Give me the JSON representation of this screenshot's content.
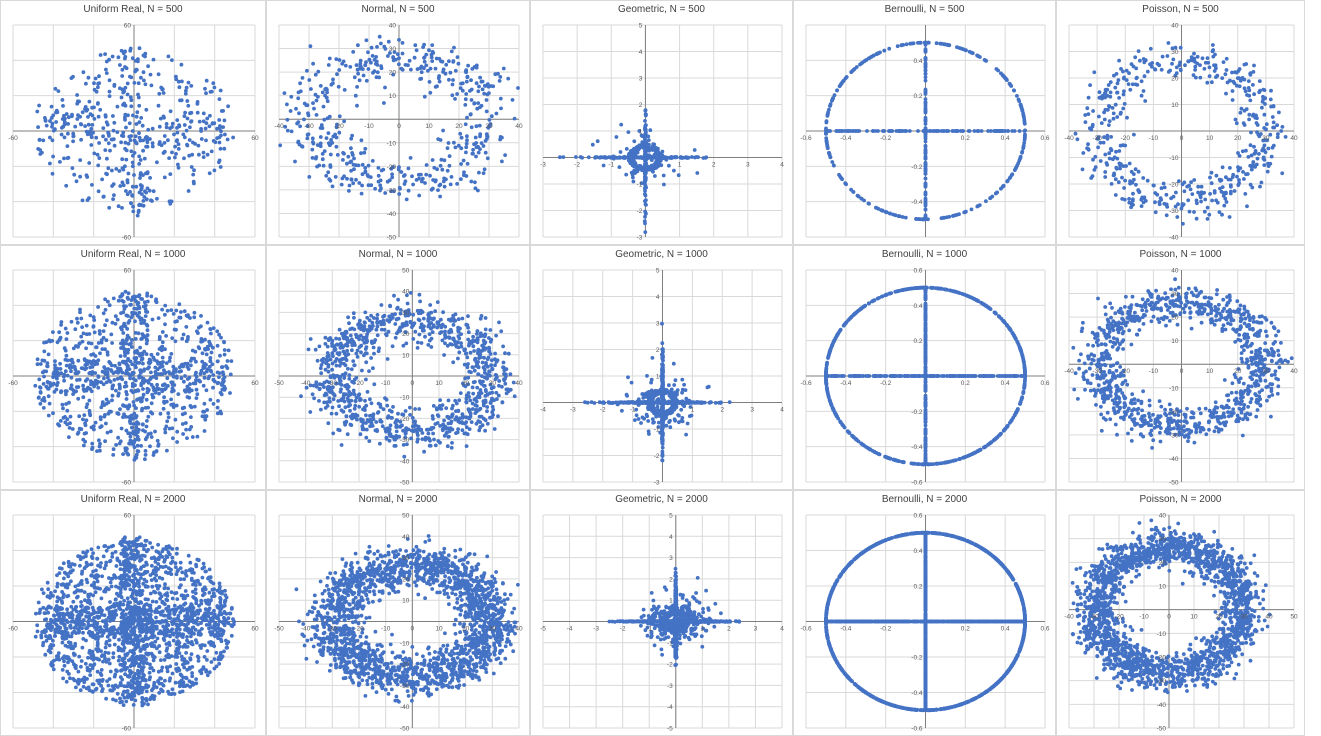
{
  "sheet": {
    "background": "#ffffff",
    "point_color": "#4472C4",
    "gridline_color": "#d9d9d9",
    "axis_color": "#404040",
    "label_color": "#595959"
  },
  "chart_data": [
    {
      "type": "scatter",
      "title": "Uniform Real, N = 500",
      "n": 500,
      "shape": "uniform-rings",
      "xlim": [
        -60,
        60
      ],
      "ylim": [
        -60,
        60
      ],
      "xticks": [
        -60,
        60
      ],
      "yticks": [
        60,
        -60
      ],
      "xgrid": [
        -60,
        -40,
        -20,
        0,
        20,
        40,
        60
      ],
      "ygrid": [
        -60,
        -40,
        -20,
        0,
        20,
        40,
        60
      ],
      "grid": true,
      "legend": "none"
    },
    {
      "type": "scatter",
      "title": "Normal, N = 500",
      "n": 500,
      "shape": "ring",
      "r": 28,
      "rsd": 5,
      "xlim": [
        -40,
        40
      ],
      "ylim": [
        -50,
        40
      ],
      "xticks": [
        -40,
        -30,
        -20,
        -10,
        0,
        10,
        20,
        30,
        40
      ],
      "yticks": [
        40,
        30,
        20,
        10,
        -10,
        -20,
        -30,
        -40,
        -50
      ],
      "xgrid": [
        -40,
        -30,
        -20,
        -10,
        0,
        10,
        20,
        30,
        40
      ],
      "ygrid": [
        -50,
        -40,
        -30,
        -20,
        -10,
        0,
        10,
        20,
        30,
        40
      ],
      "grid": true,
      "legend": "none"
    },
    {
      "type": "scatter",
      "title": "Geometric, N = 500",
      "n": 500,
      "shape": "cross",
      "xlim": [
        -3,
        4
      ],
      "ylim": [
        -3,
        5
      ],
      "xticks": [
        -3,
        -2,
        -1,
        1,
        2,
        3,
        4
      ],
      "yticks": [
        5,
        4,
        3,
        2,
        1,
        -1,
        -2,
        -3
      ],
      "xgrid": [
        -3,
        -2,
        -1,
        0,
        1,
        2,
        3,
        4
      ],
      "ygrid": [
        -3,
        -2,
        -1,
        0,
        1,
        2,
        3,
        4,
        5
      ],
      "grid": true,
      "legend": "none"
    },
    {
      "type": "scatter",
      "title": "Bernoulli, N = 500",
      "n": 500,
      "shape": "circle-cross",
      "r": 0.5,
      "xlim": [
        -0.6,
        0.6
      ],
      "ylim": [
        -0.6,
        0.6
      ],
      "xticks": [
        -0.6,
        -0.4,
        -0.2,
        0.2,
        0.4,
        0.6
      ],
      "yticks": [
        0.4,
        0.2,
        -0.2,
        -0.4
      ],
      "xgrid": [
        -0.6,
        -0.4,
        -0.2,
        0,
        0.2,
        0.4,
        0.6
      ],
      "ygrid": [
        -0.6,
        -0.4,
        -0.2,
        0,
        0.2,
        0.4,
        0.6
      ],
      "grid": true,
      "legend": "none"
    },
    {
      "type": "scatter",
      "title": "Poisson, N = 500",
      "n": 500,
      "shape": "ring",
      "r": 28,
      "rsd": 4,
      "xlim": [
        -40,
        40
      ],
      "ylim": [
        -40,
        40
      ],
      "xticks": [
        -40,
        -30,
        -20,
        -10,
        0,
        10,
        20,
        30,
        40
      ],
      "yticks": [
        40,
        30,
        20,
        10,
        -10,
        -20,
        -30,
        -40
      ],
      "xgrid": [
        -40,
        -30,
        -20,
        -10,
        0,
        10,
        20,
        30,
        40
      ],
      "ygrid": [
        -40,
        -30,
        -20,
        -10,
        0,
        10,
        20,
        30,
        40
      ],
      "grid": true,
      "legend": "none"
    },
    {
      "type": "scatter",
      "title": "Uniform Real, N = 1000",
      "n": 1000,
      "shape": "uniform-rings",
      "xlim": [
        -60,
        60
      ],
      "ylim": [
        -60,
        60
      ],
      "xticks": [
        -60,
        60
      ],
      "yticks": [
        60,
        -60
      ],
      "xgrid": [
        -60,
        -40,
        -20,
        0,
        20,
        40,
        60
      ],
      "ygrid": [
        -60,
        -40,
        -20,
        0,
        20,
        40,
        60
      ],
      "grid": true,
      "legend": "none"
    },
    {
      "type": "scatter",
      "title": "Normal, N = 1000",
      "n": 1000,
      "shape": "ring",
      "r": 28,
      "rsd": 5,
      "xlim": [
        -50,
        40
      ],
      "ylim": [
        -50,
        50
      ],
      "xticks": [
        -50,
        -40,
        -30,
        -20,
        -10,
        0,
        10,
        20,
        30,
        40
      ],
      "yticks": [
        50,
        40,
        30,
        20,
        10,
        -10,
        -20,
        -30,
        -40,
        -50
      ],
      "xgrid": [
        -50,
        -40,
        -30,
        -20,
        -10,
        0,
        10,
        20,
        30,
        40
      ],
      "ygrid": [
        -50,
        -40,
        -30,
        -20,
        -10,
        0,
        10,
        20,
        30,
        40,
        50
      ],
      "grid": true,
      "legend": "none"
    },
    {
      "type": "scatter",
      "title": "Geometric, N = 1000",
      "n": 1000,
      "shape": "cross",
      "xlim": [
        -4,
        4
      ],
      "ylim": [
        -3,
        5
      ],
      "xticks": [
        -4,
        -3,
        -2,
        -1,
        1,
        2,
        3,
        4
      ],
      "yticks": [
        5,
        4,
        3,
        2,
        1,
        -1,
        -2,
        -3
      ],
      "xgrid": [
        -4,
        -3,
        -2,
        -1,
        0,
        1,
        2,
        3,
        4
      ],
      "ygrid": [
        -3,
        -2,
        -1,
        0,
        1,
        2,
        3,
        4,
        5
      ],
      "grid": true,
      "legend": "none"
    },
    {
      "type": "scatter",
      "title": "Bernoulli, N = 1000",
      "n": 1000,
      "shape": "circle-cross",
      "r": 0.5,
      "xlim": [
        -0.6,
        0.6
      ],
      "ylim": [
        -0.6,
        0.6
      ],
      "xticks": [
        -0.6,
        -0.4,
        -0.2,
        0.2,
        0.4,
        0.6
      ],
      "yticks": [
        0.6,
        0.4,
        0.2,
        -0.2,
        -0.4,
        -0.6
      ],
      "xgrid": [
        -0.6,
        -0.4,
        -0.2,
        0,
        0.2,
        0.4,
        0.6
      ],
      "ygrid": [
        -0.6,
        -0.4,
        -0.2,
        0,
        0.2,
        0.4,
        0.6
      ],
      "grid": true,
      "legend": "none"
    },
    {
      "type": "scatter",
      "title": "Poisson, N = 1000",
      "n": 1000,
      "shape": "ring",
      "r": 28,
      "rsd": 4,
      "xlim": [
        -40,
        40
      ],
      "ylim": [
        -50,
        40
      ],
      "xticks": [
        -40,
        -30,
        -20,
        -10,
        0,
        10,
        20,
        30,
        40
      ],
      "yticks": [
        40,
        30,
        20,
        10,
        -10,
        -20,
        -30,
        -40,
        -50
      ],
      "xgrid": [
        -40,
        -30,
        -20,
        -10,
        0,
        10,
        20,
        30,
        40
      ],
      "ygrid": [
        -50,
        -40,
        -30,
        -20,
        -10,
        0,
        10,
        20,
        30,
        40
      ],
      "grid": true,
      "legend": "none"
    },
    {
      "type": "scatter",
      "title": "Uniform Real, N = 2000",
      "n": 2000,
      "shape": "uniform-rings",
      "xlim": [
        -60,
        60
      ],
      "ylim": [
        -60,
        60
      ],
      "xticks": [
        -60,
        60
      ],
      "yticks": [
        60,
        -60
      ],
      "xgrid": [
        -60,
        -40,
        -20,
        0,
        20,
        40,
        60
      ],
      "ygrid": [
        -60,
        -40,
        -20,
        0,
        20,
        40,
        60
      ],
      "grid": true,
      "legend": "none"
    },
    {
      "type": "scatter",
      "title": "Normal, N = 2000",
      "n": 2000,
      "shape": "ring",
      "r": 28,
      "rsd": 5,
      "xlim": [
        -50,
        40
      ],
      "ylim": [
        -50,
        50
      ],
      "xticks": [
        -50,
        -40,
        -30,
        -20,
        -10,
        0,
        10,
        20,
        30,
        40
      ],
      "yticks": [
        50,
        40,
        30,
        20,
        10,
        -10,
        -20,
        -30,
        -40,
        -50
      ],
      "xgrid": [
        -50,
        -40,
        -30,
        -20,
        -10,
        0,
        10,
        20,
        30,
        40
      ],
      "ygrid": [
        -50,
        -40,
        -30,
        -20,
        -10,
        0,
        10,
        20,
        30,
        40,
        50
      ],
      "grid": true,
      "legend": "none"
    },
    {
      "type": "scatter",
      "title": "Geometric, N = 2000",
      "n": 2000,
      "shape": "cross",
      "xlim": [
        -5,
        4
      ],
      "ylim": [
        -5,
        5
      ],
      "xticks": [
        -5,
        -4,
        -3,
        -2,
        -1,
        1,
        2,
        3,
        4
      ],
      "yticks": [
        5,
        4,
        3,
        2,
        1,
        -1,
        -2,
        -3,
        -4,
        -5
      ],
      "xgrid": [
        -5,
        -4,
        -3,
        -2,
        -1,
        0,
        1,
        2,
        3,
        4
      ],
      "ygrid": [
        -5,
        -4,
        -3,
        -2,
        -1,
        0,
        1,
        2,
        3,
        4,
        5
      ],
      "grid": true,
      "legend": "none"
    },
    {
      "type": "scatter",
      "title": "Bernoulli, N = 2000",
      "n": 2000,
      "shape": "circle-cross",
      "r": 0.5,
      "xlim": [
        -0.6,
        0.6
      ],
      "ylim": [
        -0.6,
        0.6
      ],
      "xticks": [
        -0.6,
        -0.4,
        -0.2,
        0.2,
        0.4,
        0.6
      ],
      "yticks": [
        0.6,
        0.4,
        0.2,
        -0.2,
        -0.4,
        -0.6
      ],
      "xgrid": [
        -0.6,
        -0.4,
        -0.2,
        0,
        0.2,
        0.4,
        0.6
      ],
      "ygrid": [
        -0.6,
        -0.4,
        -0.2,
        0,
        0.2,
        0.4,
        0.6
      ],
      "grid": true,
      "legend": "none"
    },
    {
      "type": "scatter",
      "title": "Poisson, N = 2000",
      "n": 2000,
      "shape": "ring",
      "r": 28,
      "rsd": 4,
      "xlim": [
        -40,
        50
      ],
      "ylim": [
        -50,
        40
      ],
      "xticks": [
        -40,
        -30,
        -20,
        -10,
        0,
        10,
        20,
        30,
        40,
        50
      ],
      "yticks": [
        40,
        30,
        20,
        10,
        -10,
        -20,
        -30,
        -40,
        -50
      ],
      "xgrid": [
        -40,
        -30,
        -20,
        -10,
        0,
        10,
        20,
        30,
        40,
        50
      ],
      "ygrid": [
        -50,
        -40,
        -30,
        -20,
        -10,
        0,
        10,
        20,
        30,
        40
      ],
      "grid": true,
      "legend": "none"
    }
  ]
}
